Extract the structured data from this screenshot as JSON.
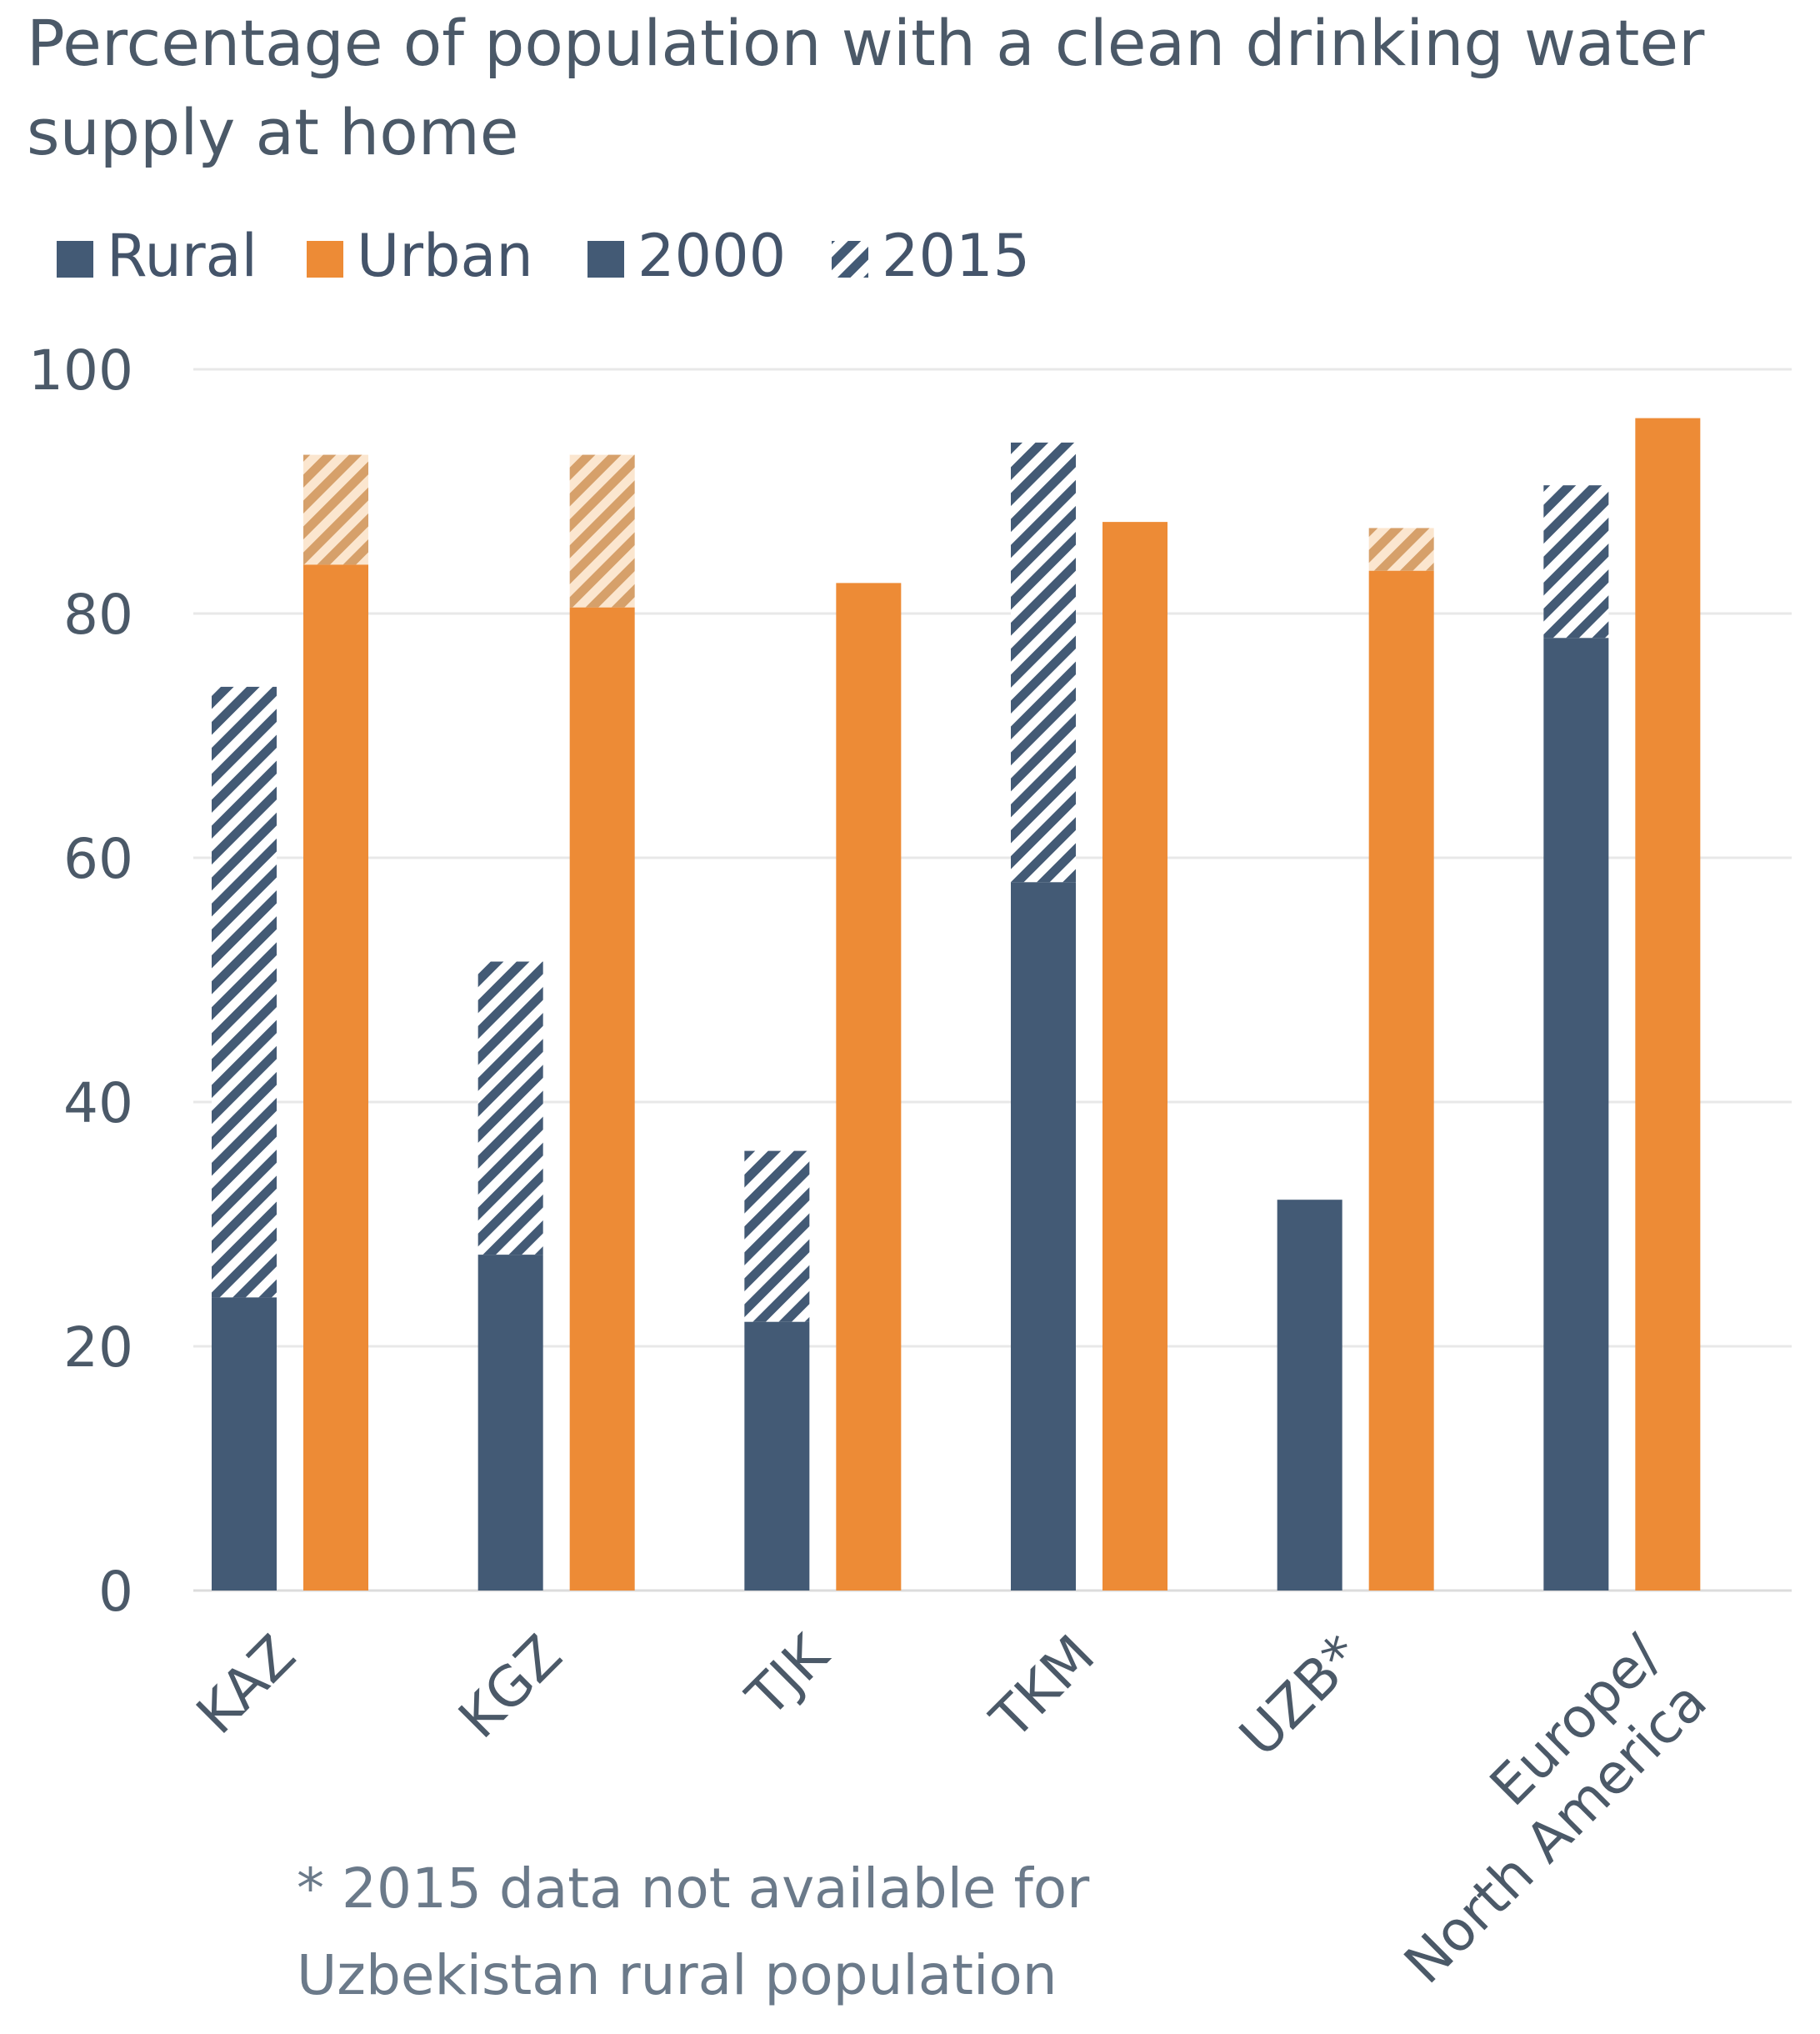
{
  "chart_data": {
    "type": "bar",
    "title_lines": [
      "Percentage of population with a clean drinking water",
      "supply at home"
    ],
    "legend": [
      "Rural",
      "Urban",
      "2000",
      "2015"
    ],
    "categories": [
      "KAZ",
      "KGZ",
      "TJK",
      "TKM",
      "UZB*",
      "Europe/ North America"
    ],
    "category_lines": [
      [
        "KAZ"
      ],
      [
        "KGZ"
      ],
      [
        "TJK"
      ],
      [
        "TKM"
      ],
      [
        "UZB*"
      ],
      [
        "Europe/",
        "North America"
      ]
    ],
    "series": [
      {
        "name": "Rural 2000",
        "values": [
          24,
          27.5,
          22,
          58,
          32,
          78
        ]
      },
      {
        "name": "Rural 2015",
        "values": [
          74,
          51.5,
          36,
          94,
          null,
          90.5
        ]
      },
      {
        "name": "Urban 2000",
        "values": [
          84,
          80.5,
          82.5,
          87.5,
          83.5,
          96
        ]
      },
      {
        "name": "Urban 2015",
        "values": [
          93,
          93,
          null,
          null,
          87,
          null
        ]
      }
    ],
    "ylim": [
      0,
      100
    ],
    "yticks": [
      0,
      20,
      40,
      60,
      80,
      100
    ],
    "grid": true,
    "legend_position": "top-left",
    "footnote_lines": [
      "* 2015 data not available for",
      "Uzbekistan rural population"
    ],
    "colors": {
      "rural": "#435a75",
      "urban": "#ed8b36",
      "grid": "#e8e8e8",
      "text": "#4b5968"
    }
  }
}
